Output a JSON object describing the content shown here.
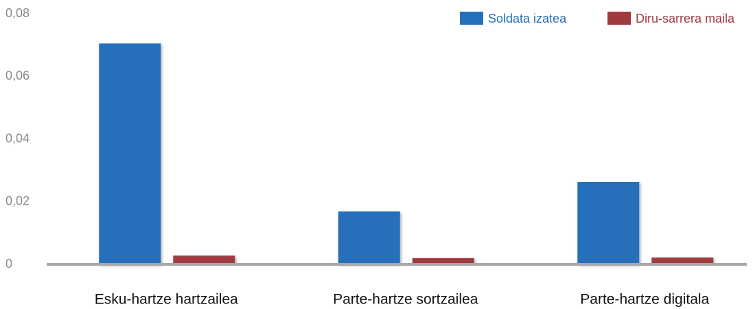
{
  "chart_data": {
    "type": "bar",
    "categories": [
      "Esku-hartze hartzailea",
      "Parte-hartze sortzailea",
      "Parte-hartze digitala"
    ],
    "series": [
      {
        "name": "Soldata izatea",
        "color": "#2570bb",
        "values": [
          0.0705,
          0.0169,
          0.0263
        ]
      },
      {
        "name": "Diru-sarrera maila",
        "color": "#a03a3f",
        "values": [
          0.0028,
          0.002,
          0.0022
        ]
      }
    ],
    "ylim": [
      0,
      0.08
    ],
    "yticks": [
      0,
      {
        "value": 0.02,
        "label": "0,02"
      },
      {
        "value": 0.04,
        "label": "0,04"
      },
      {
        "value": 0.06,
        "label": "0,06"
      },
      {
        "value": 0.08,
        "label": "0,08"
      }
    ],
    "grid": false,
    "legend": "top-right"
  }
}
